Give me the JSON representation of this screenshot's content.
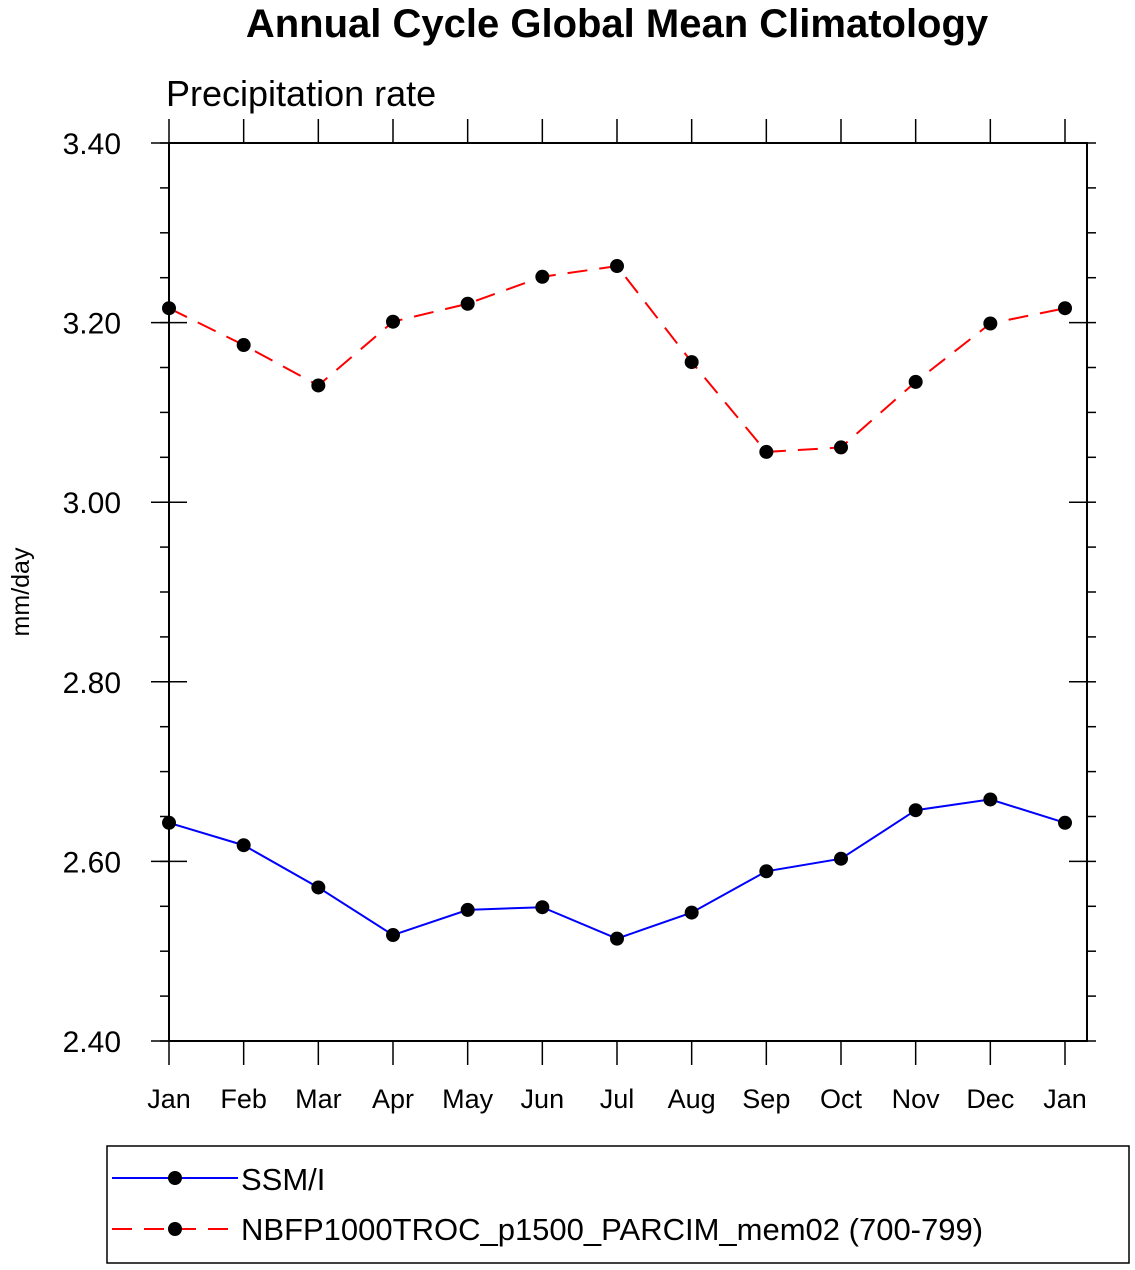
{
  "chart_data": {
    "type": "line",
    "title": "Annual Cycle Global Mean Climatology",
    "subtitle": "Precipitation rate",
    "xlabel": "",
    "ylabel": "mm/day",
    "categories": [
      "Jan",
      "Feb",
      "Mar",
      "Apr",
      "May",
      "Jun",
      "Jul",
      "Aug",
      "Sep",
      "Oct",
      "Nov",
      "Dec",
      "Jan"
    ],
    "ylim": [
      2.4,
      3.4
    ],
    "yticks": [
      "2.40",
      "2.60",
      "2.80",
      "3.00",
      "3.20",
      "3.40"
    ],
    "yminor_step": 0.05,
    "grid": false,
    "legend_position": "bottom",
    "series": [
      {
        "name": "SSM/I",
        "color": "#0000ff",
        "line_style": "solid",
        "marker": "filled-circle",
        "values": [
          2.643,
          2.618,
          2.571,
          2.518,
          2.546,
          2.549,
          2.514,
          2.543,
          2.589,
          2.603,
          2.657,
          2.669,
          2.643
        ]
      },
      {
        "name": "NBFP1000TROC_p1500_PARCIM_mem02 (700-799)",
        "color": "#ff0000",
        "line_style": "dashed",
        "marker": "filled-circle",
        "values": [
          3.216,
          3.175,
          3.13,
          3.201,
          3.221,
          3.251,
          3.263,
          3.156,
          3.056,
          3.061,
          3.134,
          3.199,
          3.216
        ]
      }
    ]
  }
}
